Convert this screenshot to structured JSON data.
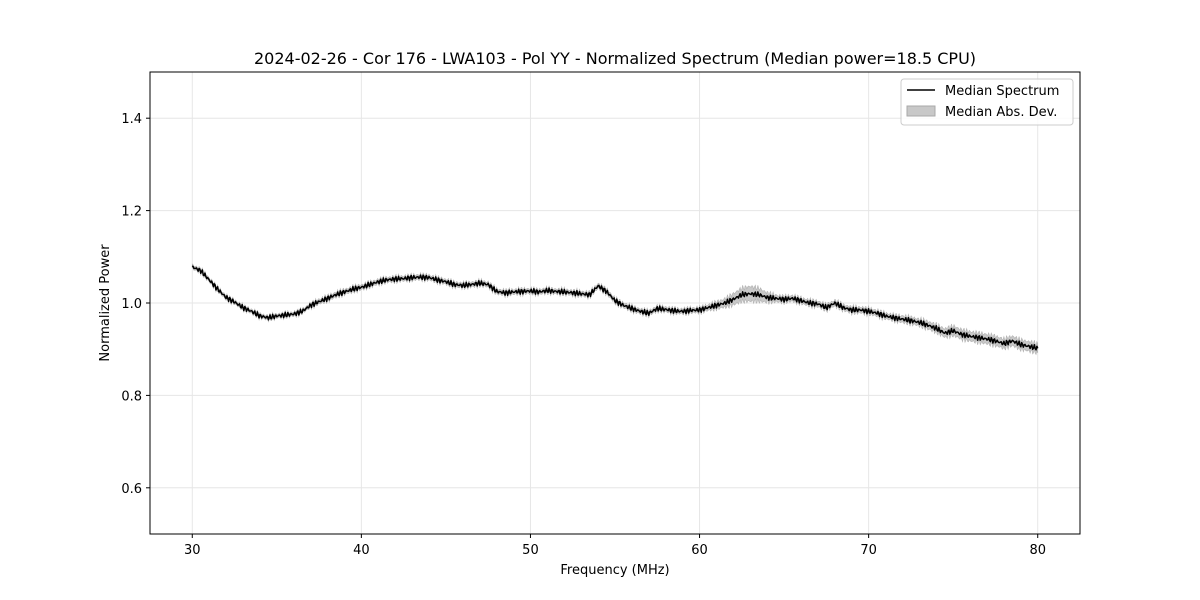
{
  "chart_data": {
    "type": "line",
    "title": "2024-02-26 - Cor 176 - LWA103 - Pol YY - Normalized Spectrum (Median power=18.5 CPU)",
    "xlabel": "Frequency (MHz)",
    "ylabel": "Normalized Power",
    "xlim": [
      27.5,
      82.5
    ],
    "ylim": [
      0.5,
      1.5
    ],
    "xticks": [
      30,
      40,
      50,
      60,
      70,
      80
    ],
    "yticks": [
      0.6,
      0.8,
      1.0,
      1.2,
      1.4
    ],
    "xtick_labels": [
      "30",
      "40",
      "50",
      "60",
      "70",
      "80"
    ],
    "ytick_labels": [
      "0.6",
      "0.8",
      "1.0",
      "1.2",
      "1.4"
    ],
    "grid": true,
    "legend_position": "top-right",
    "series": [
      {
        "name": "Median Spectrum",
        "color": "#000000",
        "x": [
          30,
          30.5,
          31,
          31.5,
          32,
          32.5,
          33,
          33.5,
          34,
          34.5,
          35,
          35.5,
          36,
          36.5,
          37,
          37.5,
          38,
          38.5,
          39,
          39.5,
          40,
          40.5,
          41,
          41.5,
          42,
          42.5,
          43,
          43.5,
          44,
          44.5,
          45,
          45.5,
          46,
          46.5,
          47,
          47.5,
          48,
          48.5,
          49,
          49.5,
          50,
          50.5,
          51,
          51.5,
          52,
          52.5,
          53,
          53.5,
          54,
          54.5,
          55,
          55.5,
          56,
          56.5,
          57,
          57.5,
          58,
          58.5,
          59,
          59.5,
          60,
          60.5,
          61,
          61.5,
          62,
          62.5,
          63,
          63.5,
          64,
          64.5,
          65,
          65.5,
          66,
          66.5,
          67,
          67.5,
          68,
          68.5,
          69,
          69.5,
          70,
          70.5,
          71,
          71.5,
          72,
          72.5,
          73,
          73.5,
          74,
          74.5,
          75,
          75.5,
          76,
          76.5,
          77,
          77.5,
          78,
          78.5,
          79,
          79.5,
          80
        ],
        "values": [
          1.078,
          1.07,
          1.05,
          1.03,
          1.012,
          1.002,
          0.99,
          0.982,
          0.972,
          0.968,
          0.972,
          0.974,
          0.976,
          0.982,
          0.995,
          1.003,
          1.01,
          1.018,
          1.024,
          1.03,
          1.034,
          1.04,
          1.046,
          1.05,
          1.052,
          1.053,
          1.055,
          1.056,
          1.055,
          1.05,
          1.046,
          1.04,
          1.038,
          1.04,
          1.043,
          1.04,
          1.025,
          1.022,
          1.024,
          1.025,
          1.026,
          1.024,
          1.027,
          1.025,
          1.024,
          1.022,
          1.02,
          1.018,
          1.037,
          1.025,
          1.005,
          0.995,
          0.988,
          0.982,
          0.978,
          0.988,
          0.986,
          0.983,
          0.982,
          0.984,
          0.985,
          0.99,
          0.995,
          1.0,
          1.008,
          1.018,
          1.02,
          1.018,
          1.012,
          1.01,
          1.008,
          1.01,
          1.005,
          1.0,
          0.998,
          0.99,
          1.0,
          0.99,
          0.985,
          0.985,
          0.982,
          0.978,
          0.972,
          0.968,
          0.965,
          0.962,
          0.958,
          0.952,
          0.945,
          0.935,
          0.94,
          0.932,
          0.928,
          0.925,
          0.922,
          0.918,
          0.912,
          0.918,
          0.91,
          0.906,
          0.902
        ]
      }
    ],
    "band": {
      "name": "Median Abs. Dev.",
      "color": "#c8c8c8",
      "halfwidth": [
        0.004,
        0.004,
        0.004,
        0.004,
        0.004,
        0.004,
        0.004,
        0.004,
        0.004,
        0.004,
        0.004,
        0.004,
        0.004,
        0.004,
        0.004,
        0.005,
        0.005,
        0.005,
        0.005,
        0.005,
        0.005,
        0.005,
        0.005,
        0.005,
        0.005,
        0.005,
        0.005,
        0.005,
        0.005,
        0.005,
        0.005,
        0.005,
        0.005,
        0.005,
        0.005,
        0.005,
        0.005,
        0.005,
        0.005,
        0.005,
        0.005,
        0.005,
        0.005,
        0.005,
        0.005,
        0.005,
        0.005,
        0.005,
        0.005,
        0.005,
        0.005,
        0.005,
        0.005,
        0.005,
        0.005,
        0.005,
        0.005,
        0.005,
        0.005,
        0.005,
        0.005,
        0.006,
        0.007,
        0.009,
        0.012,
        0.014,
        0.016,
        0.014,
        0.01,
        0.007,
        0.006,
        0.006,
        0.006,
        0.006,
        0.006,
        0.006,
        0.006,
        0.006,
        0.006,
        0.006,
        0.006,
        0.006,
        0.006,
        0.006,
        0.007,
        0.007,
        0.007,
        0.008,
        0.008,
        0.009,
        0.01,
        0.01,
        0.01,
        0.01,
        0.01,
        0.01,
        0.01,
        0.01,
        0.01,
        0.01,
        0.01
      ]
    }
  }
}
